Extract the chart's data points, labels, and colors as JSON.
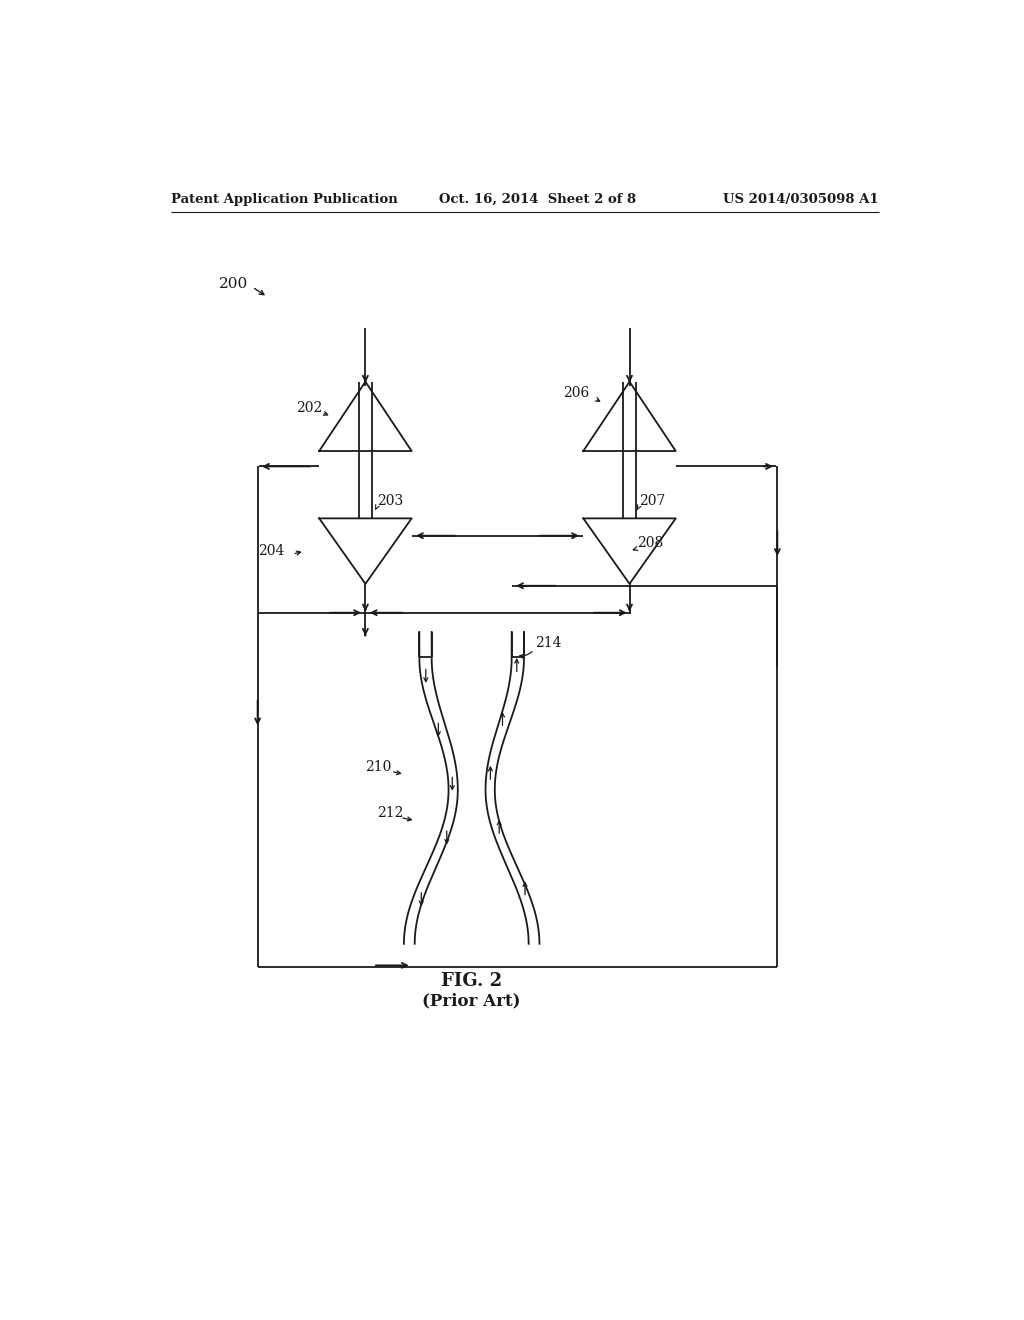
{
  "bg_color": "#ffffff",
  "line_color": "#1a1a1a",
  "header_left": "Patent Application Publication",
  "header_mid": "Oct. 16, 2014  Sheet 2 of 8",
  "header_right": "US 2014/0305098 A1",
  "fig_label": "FIG. 2",
  "fig_sublabel": "(Prior Art)",
  "label_200": "200",
  "label_202": "202",
  "label_203": "203",
  "label_204": "204",
  "label_206": "206",
  "label_207": "207",
  "label_208": "208",
  "label_210": "210",
  "label_212": "212",
  "label_214": "214",
  "lw": 1.3,
  "arrow_ms": 9
}
